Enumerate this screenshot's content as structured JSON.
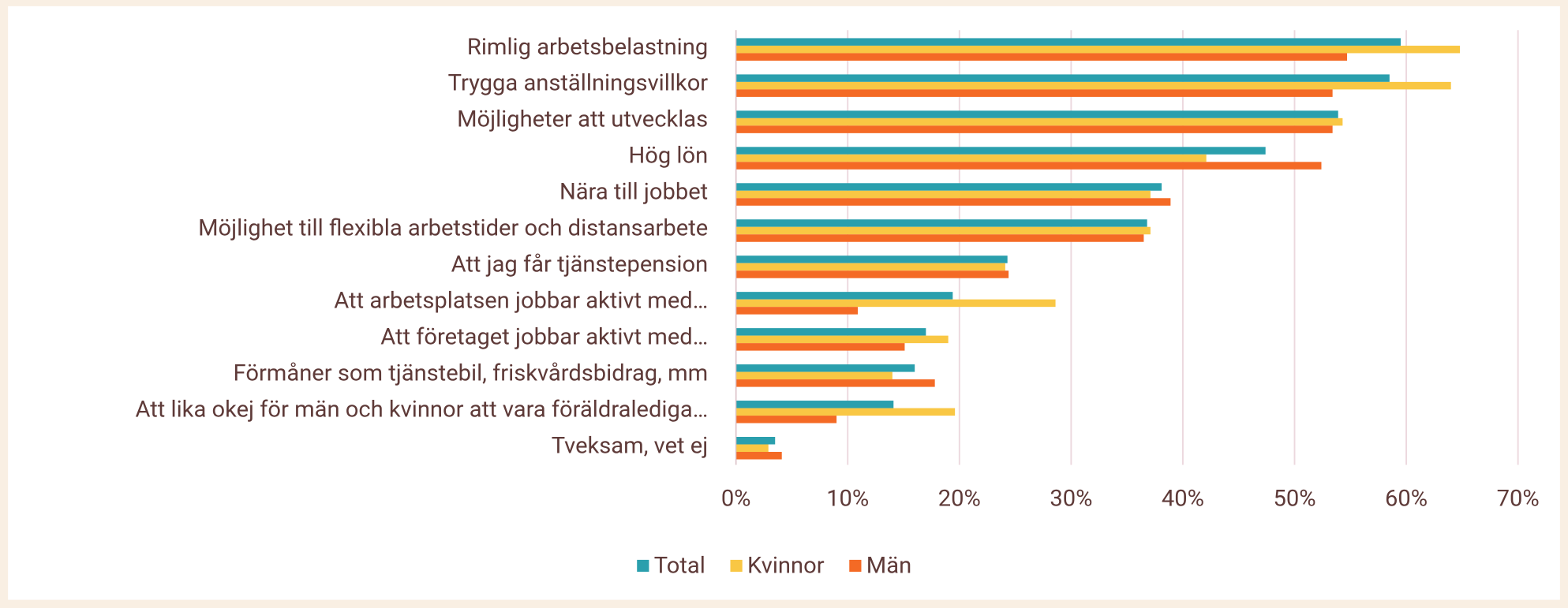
{
  "chart_data": {
    "type": "hbar",
    "categories": [
      "Rimlig arbetsbelastning",
      "Trygga anställningsvillkor",
      "Möjligheter att utvecklas",
      "Hög lön",
      "Nära till jobbet",
      "Möjlighet till flexibla arbetstider och distansarbete",
      "Att jag får tjänstepension",
      "Att arbetsplatsen jobbar aktivt med…",
      "Att företaget jobbar aktivt med…",
      "Förmåner som tjänstebil, friskvårdsbidrag, mm",
      "Att lika okej för män och kvinnor att vara föräldralediga…",
      "Tveksam, vet ej"
    ],
    "series": [
      {
        "name": "Total",
        "color": "#2a9fad",
        "values": [
          59.5,
          58.5,
          53.9,
          47.4,
          38.1,
          36.8,
          24.3,
          19.4,
          17.0,
          16.0,
          14.1,
          3.5
        ]
      },
      {
        "name": "Kvinnor",
        "color": "#f9c744",
        "values": [
          64.8,
          64.0,
          54.3,
          42.1,
          37.1,
          37.1,
          24.1,
          28.6,
          19.0,
          14.0,
          19.6,
          2.9
        ]
      },
      {
        "name": "Män",
        "color": "#f46a25",
        "values": [
          54.7,
          53.4,
          53.4,
          52.4,
          38.9,
          36.5,
          24.4,
          10.9,
          15.1,
          17.8,
          9.0,
          4.1
        ]
      }
    ],
    "xlim": [
      0,
      70
    ],
    "xticks": [
      {
        "value": 0,
        "label": "0%"
      },
      {
        "value": 10,
        "label": "10%"
      },
      {
        "value": 20,
        "label": "20%"
      },
      {
        "value": 30,
        "label": "30%"
      },
      {
        "value": 40,
        "label": "40%"
      },
      {
        "value": 50,
        "label": "50%"
      },
      {
        "value": 60,
        "label": "60%"
      },
      {
        "value": 70,
        "label": "70%"
      }
    ],
    "grid": true,
    "legend": "bottom"
  }
}
